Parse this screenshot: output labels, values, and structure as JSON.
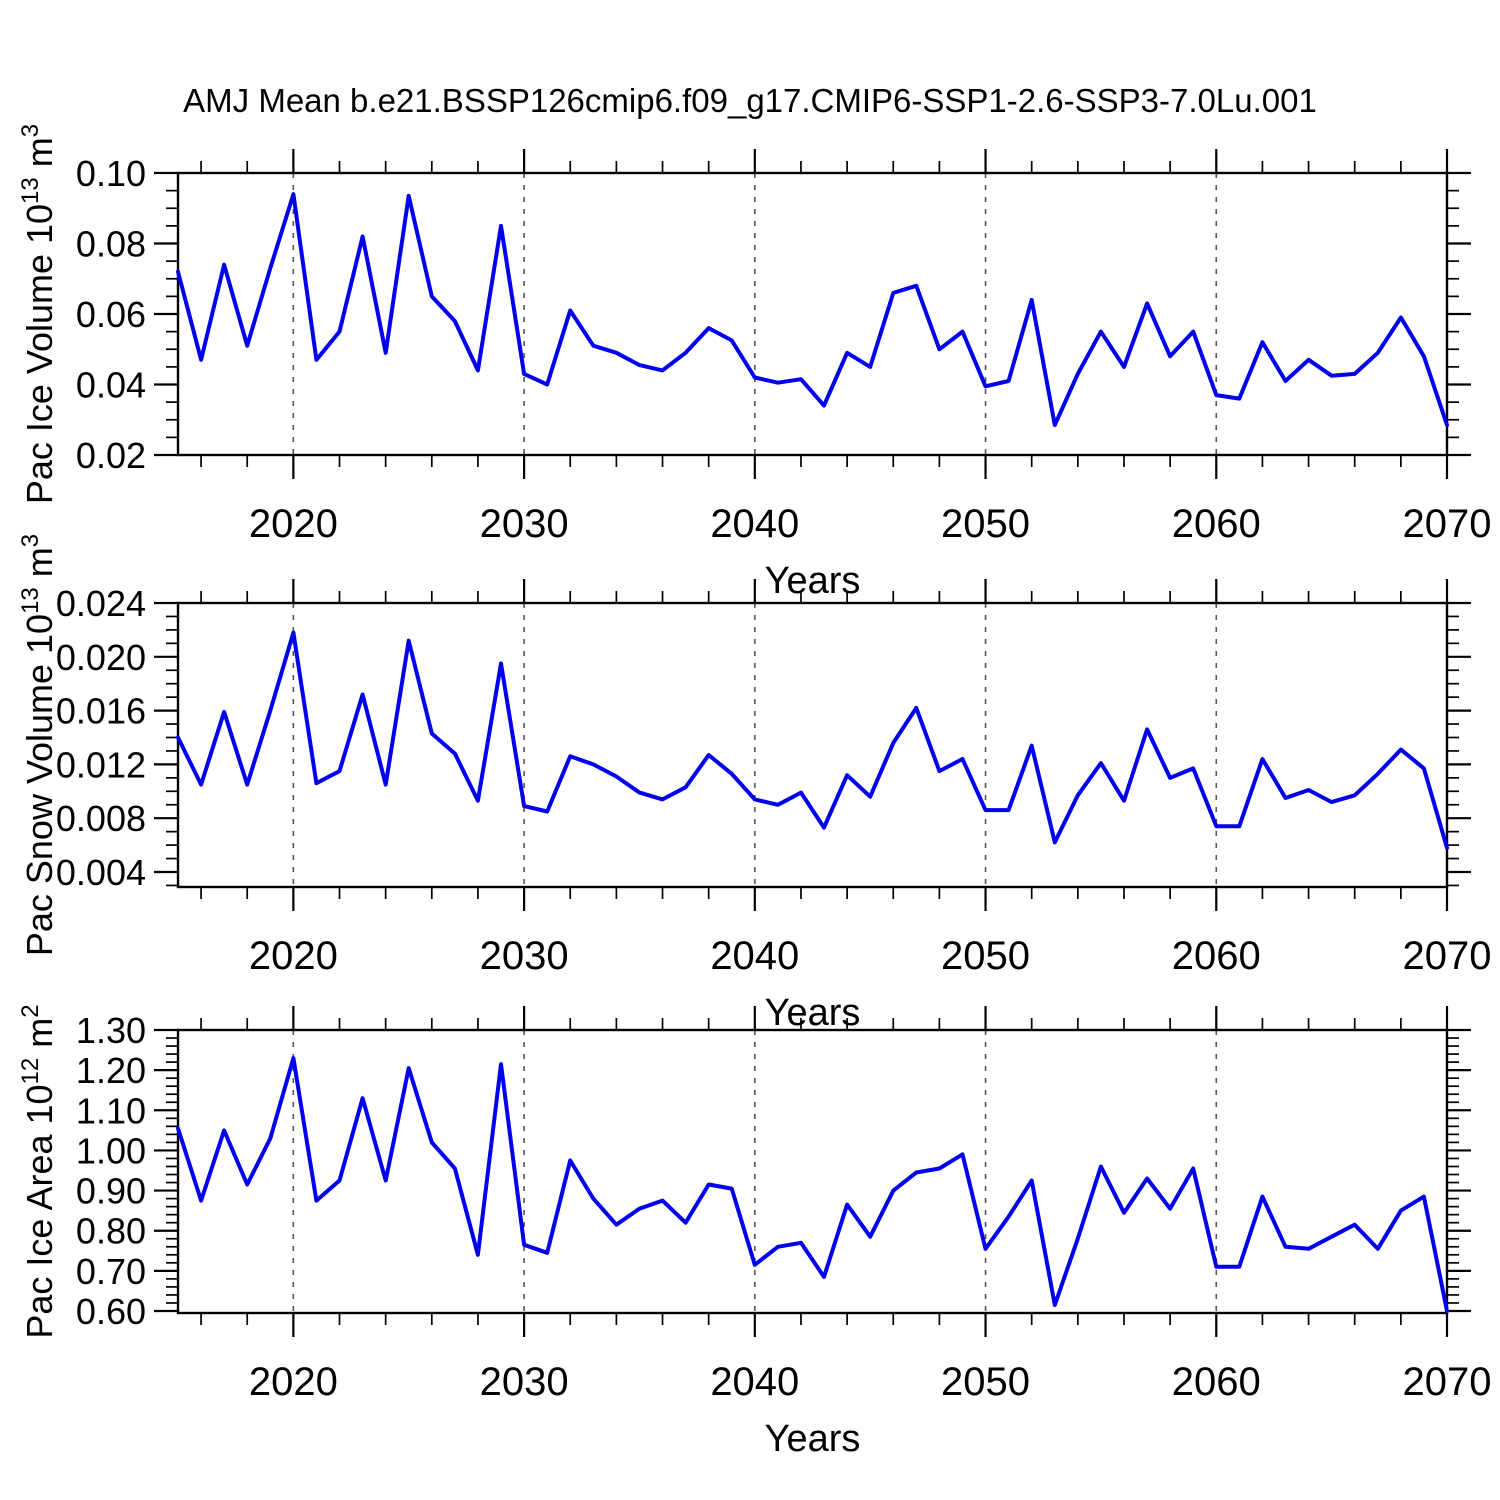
{
  "figure": {
    "title": "AMJ Mean b.e21.BSSP126cmip6.f09_g17.CMIP6-SSP1-2.6-SSP3-7.0Lu.001",
    "background": "#ffffff",
    "line_color": "#0000EE",
    "grid_color": "#555555"
  },
  "x_years": [
    2015,
    2016,
    2017,
    2018,
    2019,
    2020,
    2021,
    2022,
    2023,
    2024,
    2025,
    2026,
    2027,
    2028,
    2029,
    2030,
    2031,
    2032,
    2033,
    2034,
    2035,
    2036,
    2037,
    2038,
    2039,
    2040,
    2041,
    2042,
    2043,
    2044,
    2045,
    2046,
    2047,
    2048,
    2049,
    2050,
    2051,
    2052,
    2053,
    2054,
    2055,
    2056,
    2057,
    2058,
    2059,
    2060,
    2061,
    2062,
    2063,
    2064,
    2065,
    2066,
    2067,
    2068,
    2069,
    2070
  ],
  "chart_data": [
    {
      "id": "pac-ice-volume",
      "type": "line",
      "title": "",
      "xlabel": "Years",
      "ylabel_plain": "Pac Ice Volume 10^13 m^3",
      "ylabel": {
        "base": "Pac Ice Volume 10",
        "exp": "13",
        "unit": "m",
        "unit_exp": "3"
      },
      "xlim": [
        2015,
        2070
      ],
      "ylim": [
        0.02,
        0.1
      ],
      "yticks": [
        0.02,
        0.04,
        0.06,
        0.08,
        0.1
      ],
      "ytick_labels": [
        "0.02",
        "0.04",
        "0.06",
        "0.08",
        "0.10"
      ],
      "y_minor_step": 0.005,
      "xticks": [
        2020,
        2030,
        2040,
        2050,
        2060,
        2070
      ],
      "xtick_labels": [
        "2020",
        "2030",
        "2040",
        "2050",
        "2060",
        "2070"
      ],
      "x_minor_step": 2,
      "grid_vlines": [
        2020,
        2030,
        2040,
        2050,
        2060
      ],
      "grid_on": true,
      "legend": null,
      "line_color": "#0000EE",
      "values": [
        0.072,
        0.047,
        0.074,
        0.051,
        0.073,
        0.094,
        0.047,
        0.055,
        0.082,
        0.049,
        0.0935,
        0.065,
        0.058,
        0.044,
        0.085,
        0.043,
        0.04,
        0.061,
        0.051,
        0.049,
        0.0455,
        0.044,
        0.049,
        0.056,
        0.0525,
        0.042,
        0.0405,
        0.0415,
        0.034,
        0.049,
        0.045,
        0.066,
        0.068,
        0.05,
        0.055,
        0.0395,
        0.041,
        0.064,
        0.0285,
        0.043,
        0.055,
        0.045,
        0.063,
        0.048,
        0.055,
        0.037,
        0.036,
        0.052,
        0.041,
        0.047,
        0.0425,
        0.043,
        0.049,
        0.059,
        0.048,
        0.0285
      ]
    },
    {
      "id": "pac-snow-volume",
      "type": "line",
      "title": "",
      "xlabel": "Years",
      "ylabel_plain": "Pac Snow Volume 10^13 m^3",
      "ylabel": {
        "base": "Pac Snow Volume 10",
        "exp": "13",
        "unit": "m",
        "unit_exp": "3"
      },
      "xlim": [
        2015,
        2070
      ],
      "ylim": [
        0.0029,
        0.024
      ],
      "yticks": [
        0.004,
        0.008,
        0.012,
        0.016,
        0.02,
        0.024
      ],
      "ytick_labels": [
        "0.004",
        "0.008",
        "0.012",
        "0.016",
        "0.020",
        "0.024"
      ],
      "y_minor_step": 0.001,
      "xticks": [
        2020,
        2030,
        2040,
        2050,
        2060,
        2070
      ],
      "xtick_labels": [
        "2020",
        "2030",
        "2040",
        "2050",
        "2060",
        "2070"
      ],
      "x_minor_step": 2,
      "grid_vlines": [
        2020,
        2030,
        2040,
        2050,
        2060
      ],
      "grid_on": true,
      "legend": null,
      "line_color": "#0000EE",
      "values": [
        0.014,
        0.0105,
        0.0159,
        0.0105,
        0.016,
        0.0218,
        0.0106,
        0.0115,
        0.0172,
        0.0105,
        0.0212,
        0.0143,
        0.0128,
        0.0093,
        0.0195,
        0.0089,
        0.0085,
        0.0126,
        0.012,
        0.0111,
        0.0099,
        0.0094,
        0.0103,
        0.0127,
        0.0113,
        0.0094,
        0.009,
        0.0099,
        0.0073,
        0.0112,
        0.0096,
        0.0136,
        0.0162,
        0.0115,
        0.0124,
        0.0086,
        0.0086,
        0.0134,
        0.0062,
        0.0097,
        0.0121,
        0.0093,
        0.0146,
        0.011,
        0.0117,
        0.0074,
        0.0074,
        0.0124,
        0.0095,
        0.0101,
        0.0092,
        0.0097,
        0.0113,
        0.0131,
        0.0117,
        0.0058
      ]
    },
    {
      "id": "pac-ice-area",
      "type": "line",
      "title": "",
      "xlabel": "Years",
      "ylabel_plain": "Pac Ice Area 10^12 m^2",
      "ylabel": {
        "base": "Pac Ice Area 10",
        "exp": "12",
        "unit": "m",
        "unit_exp": "2"
      },
      "xlim": [
        2015,
        2070
      ],
      "ylim": [
        0.595,
        1.3
      ],
      "yticks": [
        0.6,
        0.7,
        0.8,
        0.9,
        1.0,
        1.1,
        1.2,
        1.3
      ],
      "ytick_labels": [
        "0.60",
        "0.70",
        "0.80",
        "0.90",
        "1.00",
        "1.10",
        "1.20",
        "1.30"
      ],
      "y_minor_step": 0.02,
      "xticks": [
        2020,
        2030,
        2040,
        2050,
        2060,
        2070
      ],
      "xtick_labels": [
        "2020",
        "2030",
        "2040",
        "2050",
        "2060",
        "2070"
      ],
      "x_minor_step": 2,
      "grid_vlines": [
        2020,
        2030,
        2040,
        2050,
        2060
      ],
      "grid_on": true,
      "legend": null,
      "line_color": "#0000EE",
      "values": [
        1.055,
        0.875,
        1.05,
        0.915,
        1.03,
        1.23,
        0.875,
        0.925,
        1.13,
        0.925,
        1.205,
        1.02,
        0.955,
        0.74,
        1.215,
        0.765,
        0.745,
        0.975,
        0.88,
        0.815,
        0.855,
        0.875,
        0.82,
        0.915,
        0.905,
        0.715,
        0.76,
        0.77,
        0.685,
        0.865,
        0.785,
        0.9,
        0.945,
        0.955,
        0.99,
        0.755,
        0.835,
        0.925,
        0.615,
        0.78,
        0.96,
        0.845,
        0.93,
        0.855,
        0.955,
        0.71,
        0.71,
        0.885,
        0.76,
        0.755,
        0.785,
        0.815,
        0.755,
        0.85,
        0.885,
        0.6
      ]
    }
  ]
}
